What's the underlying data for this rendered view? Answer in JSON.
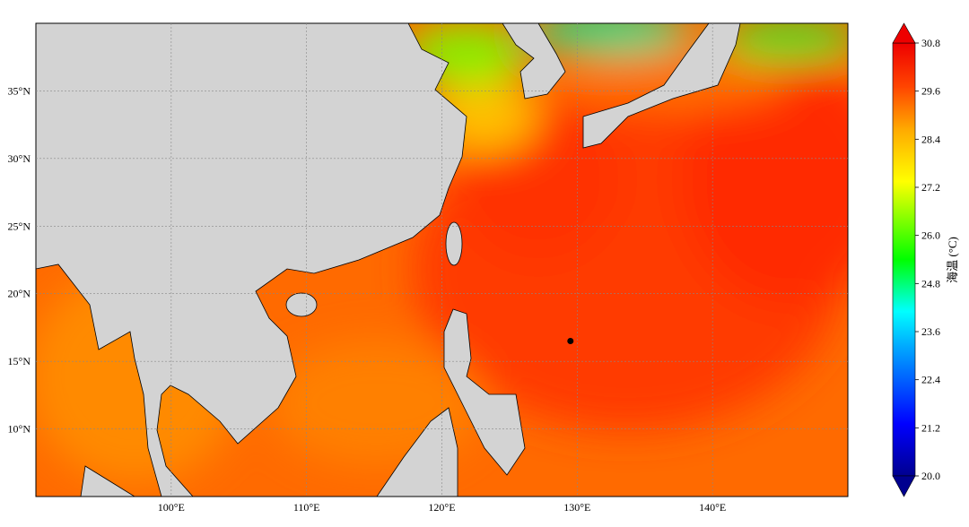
{
  "chart_data": {
    "type": "map",
    "xlim": [
      90,
      150
    ],
    "ylim": [
      5,
      40
    ],
    "xticks": [
      {
        "value": 100,
        "label": "100°E"
      },
      {
        "value": 110,
        "label": "110°E"
      },
      {
        "value": 120,
        "label": "120°E"
      },
      {
        "value": 130,
        "label": "130°E"
      },
      {
        "value": 140,
        "label": "140°E"
      }
    ],
    "yticks": [
      {
        "value": 10,
        "label": "10°N"
      },
      {
        "value": 15,
        "label": "15°N"
      },
      {
        "value": 20,
        "label": "20°N"
      },
      {
        "value": 25,
        "label": "25°N"
      },
      {
        "value": 30,
        "label": "30°N"
      },
      {
        "value": 35,
        "label": "35°N"
      }
    ],
    "grid": true,
    "points": [
      {
        "lon": 129.5,
        "lat": 16.5
      }
    ],
    "colorbar": {
      "label": "海温 (°C)",
      "clim": [
        20,
        30.8
      ],
      "ticks": [
        {
          "value": 20,
          "label": "20.0"
        },
        21.2,
        22.4,
        23.6,
        24.8,
        {
          "value": 26,
          "label": "26.0"
        },
        27.2,
        28.4,
        29.6,
        30.8
      ]
    }
  }
}
